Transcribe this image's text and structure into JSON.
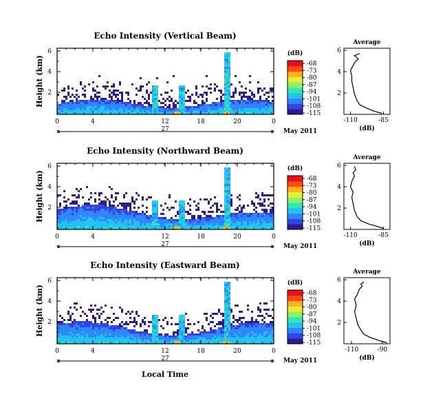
{
  "chart_data": {
    "type": "heatmap",
    "colorbar": {
      "unit": "(dB)",
      "ticks": [
        "-68",
        "-73",
        "-80",
        "-87",
        "-94",
        "-101",
        "-108",
        "-115"
      ],
      "colors": [
        "#2b1b8f",
        "#3344e0",
        "#2f86ff",
        "#22c3f0",
        "#33e6b3",
        "#8ef06a",
        "#e6ee35",
        "#ffb11e",
        "#ff4a14",
        "#e8101a"
      ]
    },
    "date_label": "May 2011",
    "xlabel": "Local Time",
    "panels": [
      {
        "title": "Echo Intensity (Vertical Beam)",
        "ylabel": "Height (km)",
        "yticks": [
          "6",
          "4",
          "2"
        ],
        "xticks": [
          "0",
          "4",
          "12",
          "18",
          "20",
          "0"
        ],
        "day_label": "27",
        "profile": {
          "title": "Average",
          "xlabel": "(dB)",
          "xticks": [
            "-110",
            "-85"
          ],
          "yticks": [
            "6",
            "4",
            "2"
          ],
          "xlim": [
            -115,
            -80
          ],
          "points": [
            [
              -86,
              0.1
            ],
            [
              -92,
              0.3
            ],
            [
              -98,
              0.6
            ],
            [
              -103,
              0.9
            ],
            [
              -105,
              1.3
            ],
            [
              -107,
              1.9
            ],
            [
              -108,
              2.5
            ],
            [
              -109,
              3.1
            ],
            [
              -109,
              3.6
            ],
            [
              -110,
              4.1
            ],
            [
              -108,
              4.6
            ],
            [
              -106,
              5.0
            ],
            [
              -104,
              5.2
            ],
            [
              -107,
              5.5
            ],
            [
              -103,
              5.7
            ]
          ]
        }
      },
      {
        "title": "Echo Intensity (Northward Beam)",
        "ylabel": "Height (km)",
        "yticks": [
          "6",
          "4",
          "2"
        ],
        "xticks": [
          "0",
          "4",
          "12",
          "18",
          "20",
          "0"
        ],
        "day_label": "27",
        "profile": {
          "title": "Average",
          "xlabel": "(dB)",
          "xticks": [
            "-110",
            "-85"
          ],
          "yticks": [
            "6",
            "4",
            "2"
          ],
          "xlim": [
            -115,
            -80
          ],
          "points": [
            [
              -85,
              0.1
            ],
            [
              -90,
              0.3
            ],
            [
              -96,
              0.5
            ],
            [
              -102,
              0.8
            ],
            [
              -105,
              1.2
            ],
            [
              -107,
              1.8
            ],
            [
              -108,
              2.4
            ],
            [
              -109,
              3.0
            ],
            [
              -108,
              3.5
            ],
            [
              -110,
              4.0
            ],
            [
              -109,
              4.5
            ],
            [
              -107,
              5.0
            ],
            [
              -108,
              5.3
            ],
            [
              -106,
              5.6
            ],
            [
              -107,
              5.9
            ]
          ]
        }
      },
      {
        "title": "Echo Intensity (Eastward Beam)",
        "ylabel": "Height (km)",
        "yticks": [
          "6",
          "4",
          "2"
        ],
        "xticks": [
          "0",
          "4",
          "12",
          "18",
          "20",
          "0"
        ],
        "day_label": "27",
        "profile": {
          "title": "Average",
          "xlabel": "(dB)",
          "xticks": [
            "-110",
            "-90"
          ],
          "yticks": [
            "6",
            "4",
            "2"
          ],
          "xlim": [
            -115,
            -85
          ],
          "points": [
            [
              -87,
              0.1
            ],
            [
              -92,
              0.3
            ],
            [
              -98,
              0.6
            ],
            [
              -102,
              0.9
            ],
            [
              -104,
              1.3
            ],
            [
              -106,
              1.8
            ],
            [
              -107,
              2.4
            ],
            [
              -108,
              3.0
            ],
            [
              -107,
              3.6
            ],
            [
              -108,
              4.2
            ],
            [
              -106,
              4.7
            ],
            [
              -105,
              5.1
            ],
            [
              -103,
              5.4
            ],
            [
              -104,
              5.6
            ],
            [
              -102,
              5.8
            ]
          ]
        }
      }
    ]
  }
}
